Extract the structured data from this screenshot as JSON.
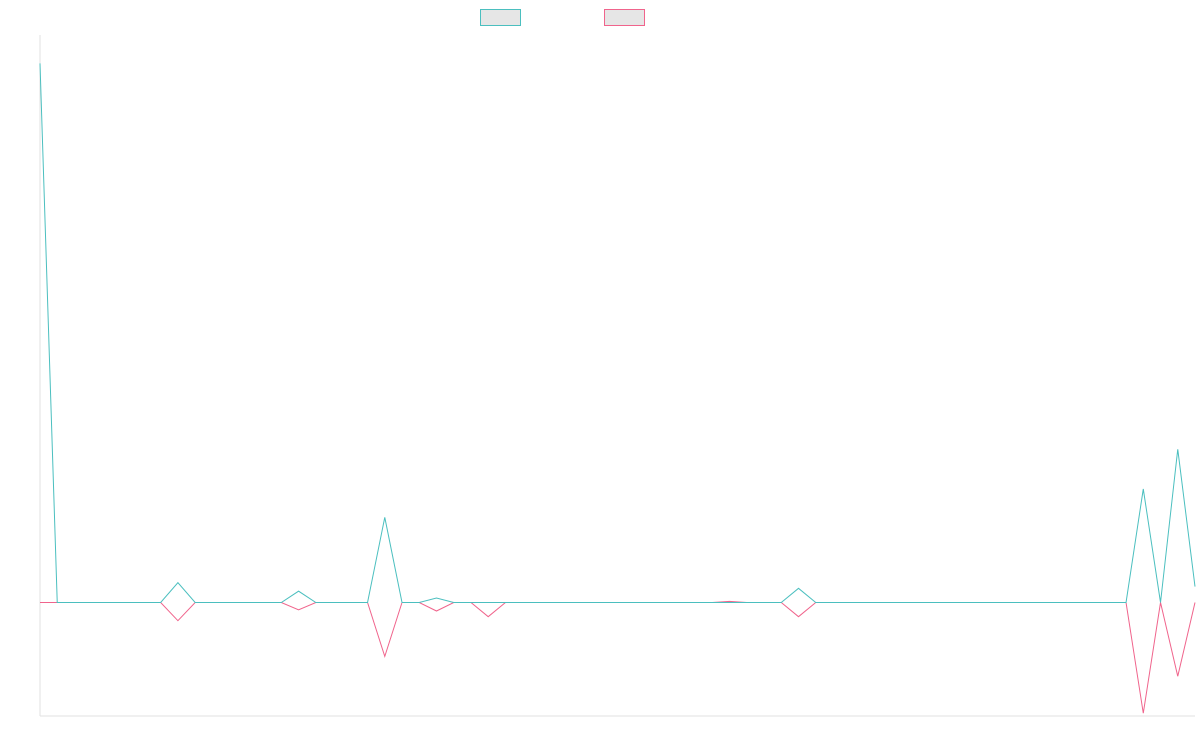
{
  "chart_data": {
    "type": "line",
    "title": "",
    "xlabel": "",
    "ylabel": "",
    "legend_position": "top-center",
    "grid": false,
    "ylim": [
      -20,
      100
    ],
    "x": [
      0,
      1,
      2,
      3,
      4,
      5,
      6,
      7,
      8,
      9,
      10,
      11,
      12,
      13,
      14,
      15,
      16,
      17,
      18,
      19,
      20,
      21,
      22,
      23,
      24,
      25,
      26,
      27,
      28,
      29,
      30,
      31,
      32,
      33,
      34,
      35,
      36,
      37,
      38,
      39,
      40,
      41,
      42,
      43,
      44,
      45,
      46,
      47,
      48,
      49,
      50,
      51,
      52,
      53,
      54,
      55,
      56,
      57,
      58,
      59,
      60,
      61,
      62,
      63,
      64,
      65,
      66,
      67
    ],
    "series": [
      {
        "color": "#4bbfbf",
        "values": [
          95,
          0,
          0,
          0,
          0,
          0,
          0,
          0,
          3.5,
          0,
          0,
          0,
          0,
          0,
          0,
          2,
          0,
          0,
          0,
          0,
          15,
          0,
          0,
          0.8,
          0,
          0,
          0,
          0,
          0,
          0,
          0,
          0,
          0,
          0,
          0,
          0,
          0,
          0,
          0,
          0,
          0,
          0,
          0,
          0,
          2.5,
          0,
          0,
          0,
          0,
          0,
          0,
          0,
          0,
          0,
          0,
          0,
          0,
          0,
          0,
          0,
          0,
          0,
          0,
          0,
          20,
          0,
          27,
          2.8
        ]
      },
      {
        "color": "#f0648c",
        "values": [
          0,
          0,
          0,
          0,
          0,
          0,
          0,
          0,
          -3.2,
          0,
          0,
          0,
          0,
          0,
          0,
          -1.3,
          0,
          0,
          0,
          0,
          -9.5,
          0,
          0,
          -1.5,
          0,
          0,
          -2.5,
          0,
          0,
          0,
          0,
          0,
          0,
          0,
          0,
          0,
          0,
          0,
          0,
          0,
          0.2,
          0,
          0,
          0,
          -2.5,
          0,
          0,
          0,
          0,
          0,
          0,
          0,
          0,
          0,
          0,
          0,
          0,
          0,
          0,
          0,
          0,
          0,
          0,
          0,
          -19.5,
          0,
          -13,
          0
        ]
      }
    ]
  }
}
